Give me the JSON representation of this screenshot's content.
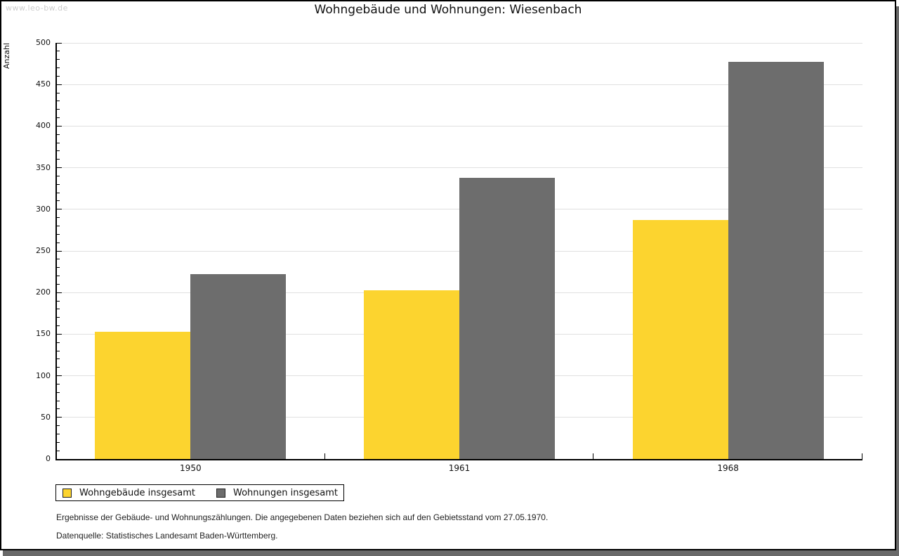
{
  "window": {
    "watermark": "www.leo-bw.de"
  },
  "chart_data": {
    "type": "bar",
    "title": "Wohngebäude und Wohnungen: Wiesenbach",
    "categories": [
      "1950",
      "1961",
      "1968"
    ],
    "series": [
      {
        "name": "Wohngebäude insgesamt",
        "color": "#FCD42F",
        "values": [
          153,
          203,
          287
        ]
      },
      {
        "name": "Wohnungen insgesamt",
        "color": "#6D6D6D",
        "values": [
          222,
          338,
          477
        ]
      }
    ],
    "xlabel": "",
    "ylabel": "Anzahl",
    "ylim": [
      0,
      500
    ],
    "ytick_step": 50,
    "yminor_tick_step": 10,
    "grid": true,
    "legend_position": "bottom-left",
    "colors": {
      "axis": "#000000",
      "gridline": "#E0E0E0",
      "watermark": "#CCCCCC",
      "shadow": "#696969",
      "background": "#FFFFFF"
    }
  },
  "footnotes": [
    "Ergebnisse der Gebäude- und Wohnungszählungen. Die angegebenen Daten beziehen sich auf den Gebietsstand vom 27.05.1970.",
    "Datenquelle: Statistisches Landesamt Baden-Württemberg."
  ]
}
